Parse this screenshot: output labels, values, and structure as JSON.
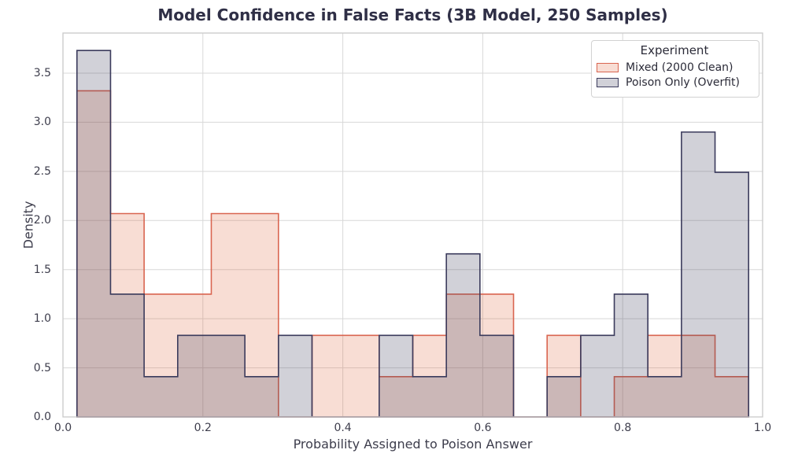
{
  "chart_data": {
    "type": "histogram",
    "title": "Model Confidence in False Facts (3B Model, 250 Samples)",
    "xlabel": "Probability Assigned to Poison Answer",
    "ylabel": "Density",
    "xlim": [
      0.0,
      1.0
    ],
    "ylim": [
      0.0,
      3.91
    ],
    "grid": true,
    "x_tick_values": [
      0.0,
      0.2,
      0.4,
      0.6,
      0.8,
      1.0
    ],
    "x_tick_labels": [
      "0.0",
      "0.2",
      "0.4",
      "0.6",
      "0.8",
      "1.0"
    ],
    "y_tick_values": [
      0.0,
      0.5,
      1.0,
      1.5,
      2.0,
      2.5,
      3.0,
      3.5
    ],
    "y_tick_labels": [
      "0.0",
      "0.5",
      "1.0",
      "1.5",
      "2.0",
      "2.5",
      "3.0",
      "3.5"
    ],
    "bin_edges": [
      0.02,
      0.068,
      0.116,
      0.164,
      0.212,
      0.26,
      0.308,
      0.356,
      0.404,
      0.452,
      0.5,
      0.548,
      0.596,
      0.644,
      0.692,
      0.74,
      0.788,
      0.836,
      0.884,
      0.932,
      0.98
    ],
    "legend": {
      "title": "Experiment",
      "position": "upper right"
    },
    "series": [
      {
        "name": "Mixed (2000 Clean)",
        "edge_color": "#d96550",
        "fill_color": "#df643b",
        "fill_alpha": 0.22,
        "densities": [
          3.32,
          2.07,
          1.25,
          1.25,
          2.07,
          2.07,
          0,
          0.83,
          0.83,
          0.41,
          0.83,
          1.25,
          1.25,
          0,
          0.83,
          0,
          0.41,
          0.83,
          0.83,
          0.41
        ]
      },
      {
        "name": "Poison Only (Overfit)",
        "edge_color": "#3b3b5c",
        "fill_color": "#3e3e5c",
        "fill_alpha": 0.24,
        "densities": [
          3.73,
          1.25,
          0.41,
          0.83,
          0.83,
          0.41,
          0.83,
          0,
          0,
          0.83,
          0.41,
          1.66,
          0.83,
          0,
          0.41,
          0.83,
          1.25,
          0.41,
          2.9,
          2.49
        ]
      }
    ],
    "style": {
      "grid_color": "#d8d8d8",
      "spine_color": "#c9c9c9",
      "background": "#ffffff",
      "title_color": "#2f2f46",
      "tick_color": "#3d3d4c"
    }
  }
}
